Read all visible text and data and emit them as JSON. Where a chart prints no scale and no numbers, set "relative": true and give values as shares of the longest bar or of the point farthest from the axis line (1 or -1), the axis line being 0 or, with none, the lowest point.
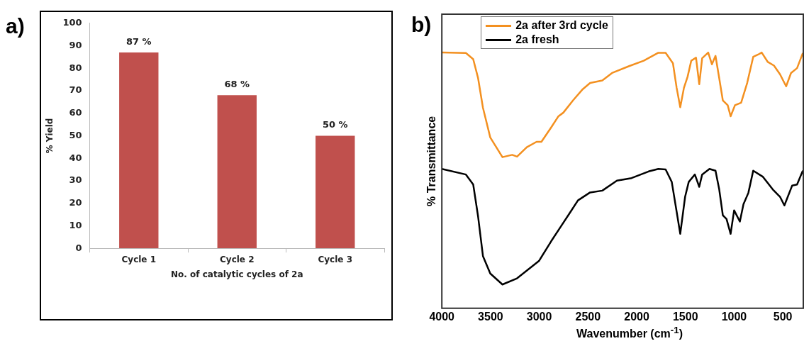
{
  "chart_data": [
    {
      "type": "bar",
      "annotations": [
        "a)"
      ],
      "xlabel": "No. of catalytic cycles of 2a",
      "ylabel": "% Yield",
      "categories": [
        "Cycle 1",
        "Cycle 2",
        "Cycle 3"
      ],
      "values": [
        87,
        68,
        50
      ],
      "value_labels": [
        "87 %",
        "68 %",
        "50 %"
      ],
      "color": "#c0504d",
      "ylim": [
        0,
        100
      ],
      "yticks": [
        0,
        10,
        20,
        30,
        40,
        50,
        60,
        70,
        80,
        90,
        100
      ],
      "grid": false,
      "legend": false
    },
    {
      "type": "line",
      "annotations": [
        "b)"
      ],
      "xlabel": "Wavenumber (cm$^{-1}$)",
      "ylabel": "% Transmittance",
      "relative": true,
      "xlim": [
        4000,
        290
      ],
      "xticks": [
        4000,
        3500,
        3000,
        2500,
        2000,
        1500,
        1000,
        500
      ],
      "tick_labels": "x",
      "grid": false,
      "legend": "top left",
      "marker": "none",
      "line_style": "solid",
      "series": [
        {
          "name": "2a after 3rd cycle",
          "color": "#f39020",
          "x": [
            4000,
            3753,
            3678,
            3628,
            3578,
            3503,
            3378,
            3278,
            3228,
            3128,
            3028,
            2978,
            2878,
            2803,
            2753,
            2653,
            2553,
            2478,
            2353,
            2253,
            2078,
            1928,
            1778,
            1703,
            1628,
            1590,
            1553,
            1515,
            1478,
            1440,
            1391,
            1358,
            1328,
            1266,
            1228,
            1191,
            1153,
            1116,
            1066,
            1036,
            991,
            928,
            866,
            804,
            754,
            717,
            654,
            591,
            529,
            466,
            416,
            354,
            295
          ],
          "values": [
            1.0,
            0.998,
            0.974,
            0.9,
            0.784,
            0.668,
            0.591,
            0.6,
            0.593,
            0.63,
            0.651,
            0.651,
            0.707,
            0.751,
            0.765,
            0.813,
            0.857,
            0.881,
            0.891,
            0.92,
            0.947,
            0.968,
            0.999,
            0.999,
            0.958,
            0.862,
            0.786,
            0.862,
            0.905,
            0.968,
            0.98,
            0.876,
            0.978,
            1.0,
            0.954,
            0.987,
            0.9,
            0.813,
            0.794,
            0.751,
            0.794,
            0.804,
            0.881,
            0.983,
            0.992,
            1.0,
            0.963,
            0.949,
            0.915,
            0.868,
            0.92,
            0.939,
            0.998
          ]
        },
        {
          "name": "2a fresh",
          "color": "#000000",
          "x": [
            4000,
            3753,
            3678,
            3628,
            3578,
            3503,
            3378,
            3228,
            3003,
            2878,
            2778,
            2678,
            2603,
            2478,
            2353,
            2203,
            2053,
            1878,
            1778,
            1703,
            1640,
            1590,
            1553,
            1503,
            1466,
            1403,
            1358,
            1328,
            1253,
            1191,
            1153,
            1116,
            1078,
            1036,
            1000,
            941,
            904,
            854,
            804,
            704,
            604,
            529,
            484,
            404,
            354,
            295
          ],
          "values": [
            0.545,
            0.523,
            0.484,
            0.359,
            0.204,
            0.136,
            0.093,
            0.117,
            0.185,
            0.262,
            0.32,
            0.378,
            0.422,
            0.453,
            0.46,
            0.499,
            0.509,
            0.535,
            0.545,
            0.543,
            0.494,
            0.378,
            0.291,
            0.436,
            0.494,
            0.523,
            0.475,
            0.523,
            0.545,
            0.538,
            0.465,
            0.364,
            0.349,
            0.291,
            0.383,
            0.339,
            0.407,
            0.451,
            0.538,
            0.514,
            0.465,
            0.436,
            0.402,
            0.48,
            0.484,
            0.538
          ]
        }
      ]
    }
  ]
}
